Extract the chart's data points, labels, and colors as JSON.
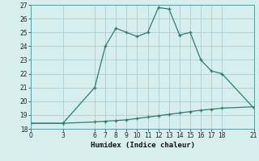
{
  "xlabel": "Humidex (Indice chaleur)",
  "line1_x": [
    0,
    3,
    6,
    7,
    8,
    9,
    10,
    11,
    12,
    13,
    14,
    15,
    16,
    17,
    18,
    21
  ],
  "line1_y": [
    18.4,
    18.4,
    21.0,
    24.0,
    25.3,
    25.0,
    24.7,
    25.0,
    26.8,
    26.7,
    24.8,
    25.0,
    23.0,
    22.2,
    22.0,
    19.5
  ],
  "line2_x": [
    0,
    3,
    6,
    7,
    8,
    9,
    10,
    11,
    12,
    13,
    14,
    15,
    16,
    17,
    18,
    21
  ],
  "line2_y": [
    18.4,
    18.4,
    18.5,
    18.55,
    18.6,
    18.65,
    18.75,
    18.85,
    18.95,
    19.05,
    19.15,
    19.25,
    19.35,
    19.42,
    19.5,
    19.6
  ],
  "color": "#2e7d6e",
  "bg_color": "#d6eeed",
  "grid_color": "#b0cccc",
  "xlim": [
    0,
    21
  ],
  "ylim": [
    18,
    27
  ],
  "yticks": [
    18,
    19,
    20,
    21,
    22,
    23,
    24,
    25,
    26,
    27
  ],
  "xticks": [
    0,
    3,
    6,
    7,
    8,
    9,
    10,
    11,
    12,
    13,
    14,
    15,
    16,
    17,
    18,
    21
  ]
}
